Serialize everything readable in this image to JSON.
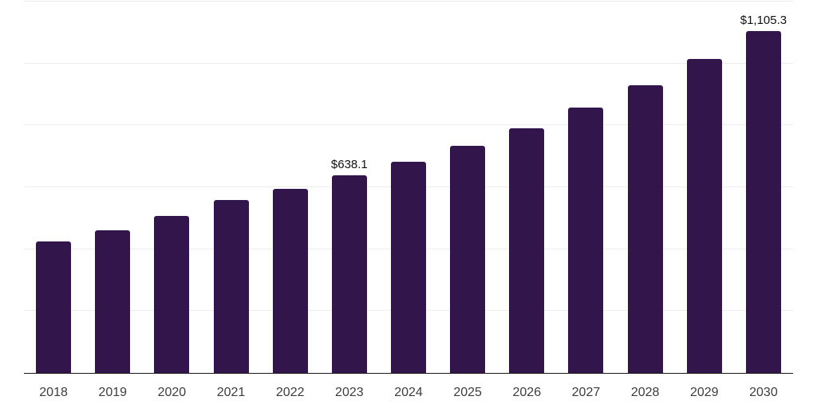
{
  "chart_data": {
    "type": "bar",
    "title": "",
    "xlabel": "",
    "ylabel": "",
    "categories": [
      "2018",
      "2019",
      "2020",
      "2021",
      "2022",
      "2023",
      "2024",
      "2025",
      "2026",
      "2027",
      "2028",
      "2029",
      "2030"
    ],
    "values": [
      425,
      461,
      507,
      559,
      595,
      638.1,
      682,
      734,
      791,
      857,
      930,
      1015,
      1105.3
    ],
    "point_labels": [
      "",
      "",
      "",
      "",
      "",
      "$638.1",
      "",
      "",
      "",
      "",
      "",
      "",
      "$1,105.3"
    ],
    "ylim": [
      0,
      1200
    ],
    "y_gridline_step": 200,
    "grid": "horizontal",
    "legend": "none"
  },
  "style": {
    "bar_color": "#32164b",
    "grid_color": "#ededed",
    "axis_color": "#1a1a1a",
    "tick_label_color": "#3d3d3d",
    "data_label_color": "#111111",
    "background": "#ffffff"
  }
}
